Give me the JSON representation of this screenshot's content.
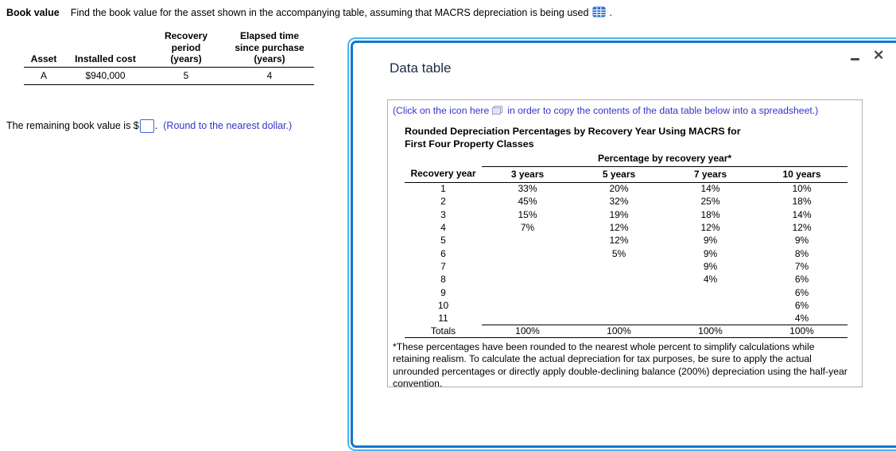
{
  "question": {
    "topic": "Book value",
    "prompt": "Find the book value for the asset shown in the accompanying table, assuming that MACRS depreciation is being used",
    "prompt_suffix": "."
  },
  "asset_table": {
    "headers": [
      "Asset",
      "Installed cost",
      "Recovery\nperiod\n(years)",
      "Elapsed time\nsince purchase\n(years)"
    ],
    "rows": [
      [
        "A",
        "$940,000",
        "5",
        "4"
      ]
    ]
  },
  "answer": {
    "prefix": "The remaining book value is $",
    "input_value": "",
    "suffix": ".",
    "hint": "(Round to the nearest dollar.)"
  },
  "popup": {
    "title": "Data table",
    "controls": {
      "minimize": "minimize",
      "close": "close",
      "close_glyph": "✕"
    },
    "instruction": {
      "pre": "(Click on the icon here",
      "post": "in order to copy the contents of the data table below into a spreadsheet.)"
    },
    "table": {
      "title_line1": "Rounded Depreciation Percentages by Recovery Year Using MACRS for",
      "title_line2": "First Four Property Classes",
      "group_header": "Percentage by recovery year*",
      "col_headers": [
        "Recovery year",
        "3 years",
        "5 years",
        "7 years",
        "10 years"
      ],
      "rows": [
        [
          "1",
          "33%",
          "20%",
          "14%",
          "10%"
        ],
        [
          "2",
          "45%",
          "32%",
          "25%",
          "18%"
        ],
        [
          "3",
          "15%",
          "19%",
          "18%",
          "14%"
        ],
        [
          "4",
          "7%",
          "12%",
          "12%",
          "12%"
        ],
        [
          "5",
          "",
          "12%",
          "9%",
          "9%"
        ],
        [
          "6",
          "",
          "5%",
          "9%",
          "8%"
        ],
        [
          "7",
          "",
          "",
          "9%",
          "7%"
        ],
        [
          "8",
          "",
          "",
          "4%",
          "6%"
        ],
        [
          "9",
          "",
          "",
          "",
          "6%"
        ],
        [
          "10",
          "",
          "",
          "",
          "6%"
        ],
        [
          "11",
          "",
          "",
          "",
          "4%"
        ],
        [
          "Totals",
          "100%",
          "100%",
          "100%",
          "100%"
        ]
      ],
      "footnote": "*These percentages have been rounded to the nearest whole percent to simplify calculations while retaining realism. To calculate the actual depreciation for tax purposes, be sure to apply the actual unrounded percentages or directly apply double-declining balance (200%) depreciation using the half-year convention."
    }
  },
  "colors": {
    "link_blue": "#3434c8",
    "popup_border_outer": "#49b5ee",
    "popup_border_inner": "#1276d2",
    "panel_border": "#b0b0b0",
    "table_icon_blue": "#2a70d8",
    "input_border_blue": "#4063d8",
    "title_navy": "#1b2b47"
  }
}
